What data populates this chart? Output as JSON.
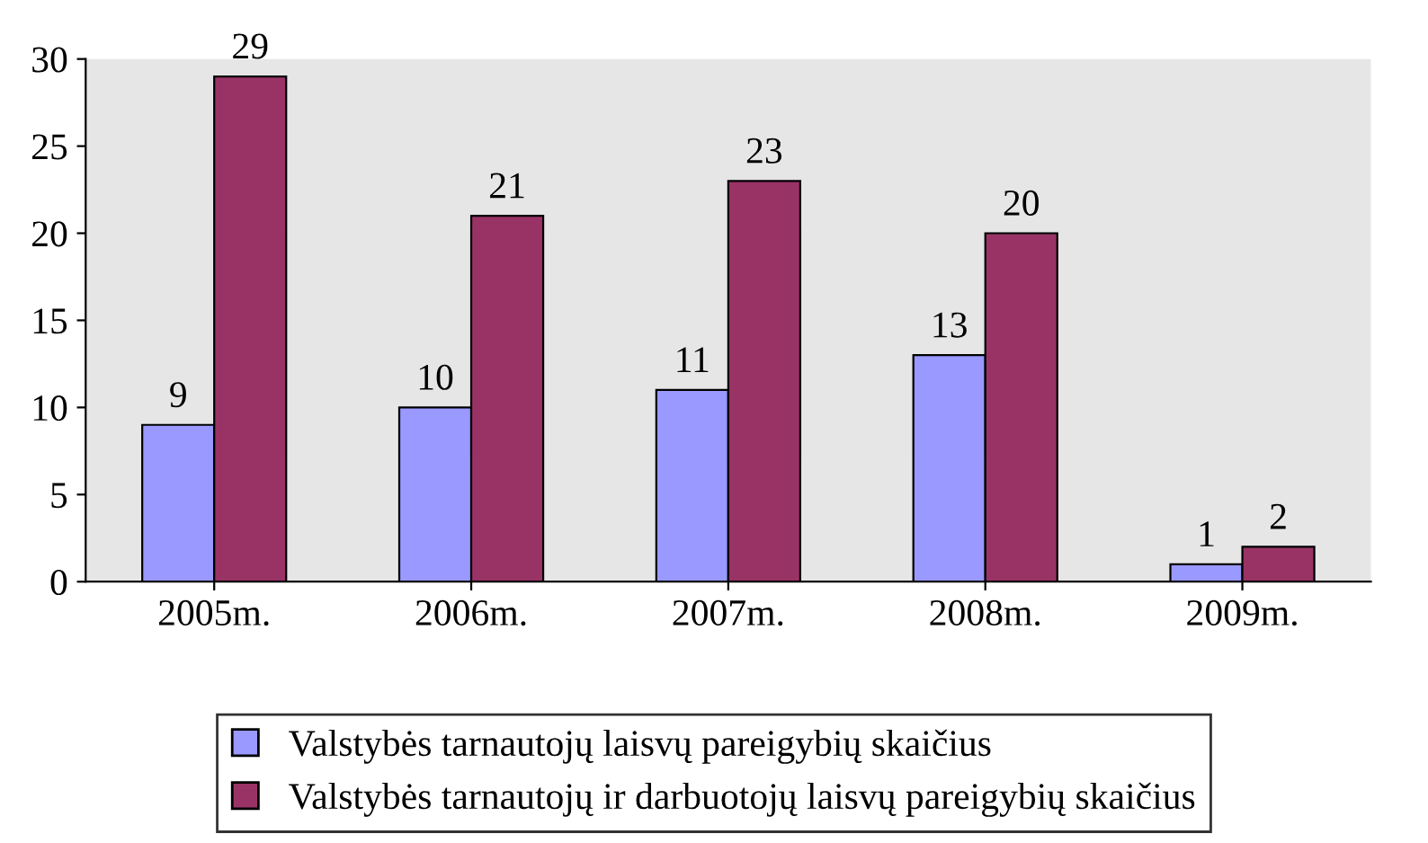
{
  "chart_data": {
    "type": "bar",
    "categories": [
      "2005m.",
      "2006m.",
      "2007m.",
      "2008m.",
      "2009m."
    ],
    "series": [
      {
        "name": "Valstybės tarnautojų laisvų pareigybių skaičius",
        "color": "#9999ff",
        "values": [
          9,
          10,
          11,
          13,
          1
        ]
      },
      {
        "name": "Valstybės tarnautojų ir darbuotojų laisvų pareigybių skaičius",
        "color": "#993366",
        "values": [
          29,
          21,
          23,
          20,
          2
        ]
      }
    ],
    "ylim": [
      0,
      30
    ],
    "yticks": [
      0,
      5,
      10,
      15,
      20,
      25,
      30
    ],
    "grid": false,
    "legend": "bottom",
    "data_labels": true
  }
}
